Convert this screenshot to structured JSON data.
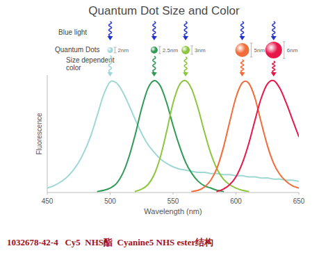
{
  "chart_data": {
    "type": "line",
    "title": "Quantum Dot Size and Color",
    "annotations": [
      "Blue light",
      "Quantum Dots",
      "Size dependent\ncolor"
    ],
    "x_label": "Wavelength (nm)",
    "y_label": "Fluorescence",
    "caption": "1032678-42-4   Cy5  NHS酯  Cyanine5 NHS ester结构",
    "x": [
      450,
      455,
      460,
      465,
      470,
      475,
      480,
      485,
      490,
      495,
      500,
      505,
      510,
      515,
      520,
      525,
      530,
      535,
      540,
      545,
      550,
      555,
      560,
      565,
      570,
      575,
      580,
      585,
      590,
      595,
      600,
      605,
      610,
      615,
      620,
      625,
      630,
      635,
      640,
      645,
      650
    ],
    "series": [
      {
        "name": "2nm",
        "color": "#9fd8d3",
        "values": [
          0.04,
          0.06,
          0.09,
          0.13,
          0.19,
          0.27,
          0.38,
          0.52,
          0.7,
          0.88,
          0.99,
          0.98,
          0.9,
          0.78,
          0.65,
          0.53,
          0.43,
          0.36,
          0.3,
          0.26,
          0.23,
          0.21,
          0.2,
          0.19,
          0.18,
          0.18,
          0.17,
          0.17,
          0.16,
          0.16,
          0.15,
          0.15,
          0.14,
          0.14,
          0.13,
          0.13,
          0.12,
          0.12,
          0.11,
          0.11,
          0.1
        ]
      },
      {
        "name": "2.5nm",
        "color": "#2f9a55",
        "values": [
          null,
          null,
          null,
          null,
          null,
          null,
          null,
          null,
          0.01,
          0.02,
          0.04,
          0.08,
          0.17,
          0.32,
          0.52,
          0.75,
          0.93,
          1.0,
          0.95,
          0.8,
          0.6,
          0.42,
          0.27,
          0.17,
          0.1,
          0.06,
          0.04,
          0.02,
          0.01,
          null,
          null,
          null,
          null,
          null,
          null,
          null,
          null,
          null,
          null,
          null,
          null
        ]
      },
      {
        "name": "3nm",
        "color": "#8cc63f",
        "values": [
          null,
          null,
          null,
          null,
          null,
          null,
          null,
          null,
          null,
          null,
          null,
          null,
          null,
          null,
          0.01,
          0.03,
          0.07,
          0.16,
          0.32,
          0.55,
          0.8,
          0.96,
          1.0,
          0.92,
          0.75,
          0.54,
          0.35,
          0.21,
          0.12,
          0.07,
          0.04,
          0.02,
          0.01,
          null,
          null,
          null,
          null,
          null,
          null,
          null,
          null
        ]
      },
      {
        "name": "5nm",
        "color": "#f26b3a",
        "values": [
          null,
          null,
          null,
          null,
          null,
          null,
          null,
          null,
          null,
          null,
          null,
          null,
          null,
          null,
          null,
          null,
          null,
          null,
          null,
          null,
          null,
          null,
          null,
          0.01,
          0.02,
          0.05,
          0.11,
          0.22,
          0.4,
          0.63,
          0.85,
          0.98,
          0.98,
          0.85,
          0.63,
          0.42,
          0.26,
          0.16,
          0.1,
          0.06,
          0.04
        ]
      },
      {
        "name": "6nm",
        "color": "#e8174a",
        "values": [
          null,
          null,
          null,
          null,
          null,
          null,
          null,
          null,
          null,
          null,
          null,
          null,
          null,
          null,
          null,
          null,
          null,
          null,
          null,
          null,
          null,
          null,
          null,
          null,
          null,
          null,
          null,
          0.01,
          0.03,
          0.07,
          0.14,
          0.26,
          0.43,
          0.64,
          0.84,
          0.97,
          1.0,
          0.93,
          0.8,
          0.65,
          0.5
        ]
      }
    ],
    "xlim": [
      450,
      650
    ],
    "xticks": [
      450,
      500,
      550,
      600,
      650
    ],
    "ylim": [
      0,
      1.05
    ],
    "yticks": [],
    "tick_labels": "x",
    "grid": false
  }
}
